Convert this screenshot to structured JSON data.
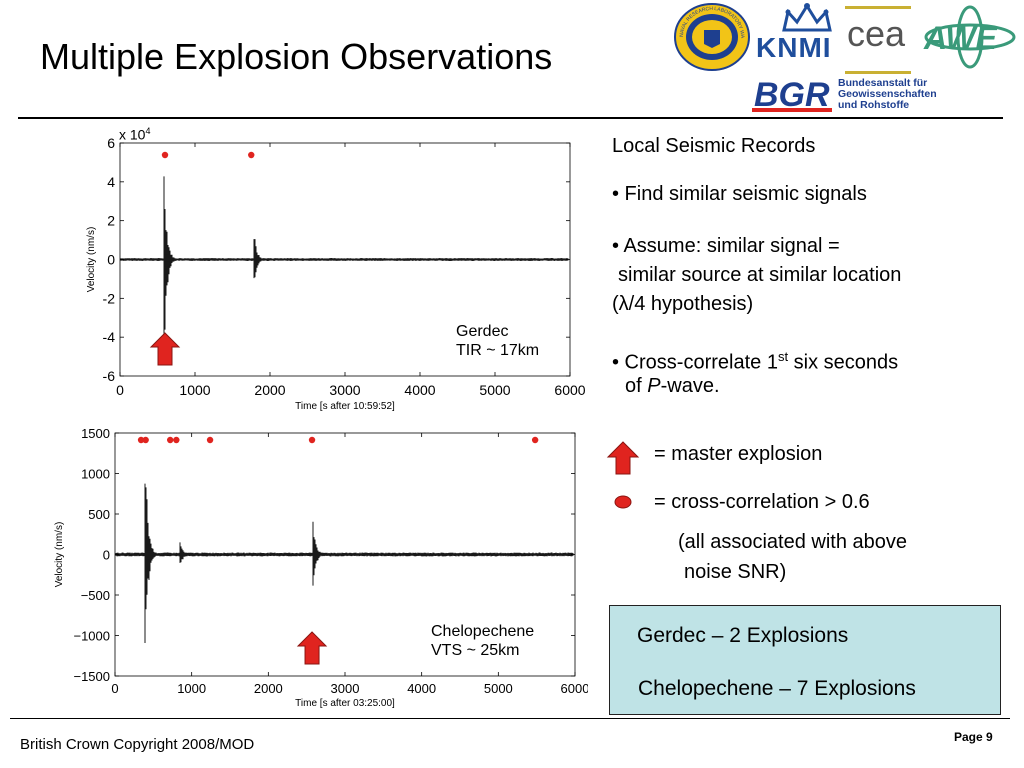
{
  "slide": {
    "title": "Multiple Explosion Observations",
    "copyright": "British Crown Copyright 2008/MOD",
    "page_label": "Page 9"
  },
  "logos": {
    "nrl_text": "NAVAL RESEARCH LABORATORY WASHINGTON DC",
    "knmi": "KNMI",
    "cea": "cea",
    "awe": "AWE",
    "bgr": "BGR",
    "bgr_full": [
      "Bundesanstalt für",
      "Geowissenschaften",
      "und Rohstoffe"
    ]
  },
  "charts": {
    "gerdec": {
      "location_label": [
        "Gerdec",
        "TIR ~ 17km"
      ],
      "scale_label": "x 10",
      "scale_exp": "4"
    },
    "chelopechene": {
      "location_label": [
        "Chelopechene",
        "VTS ~ 25km"
      ]
    }
  },
  "chart_data": [
    {
      "type": "line",
      "xlabel": "Time [s after 10:59:52]",
      "ylabel": "Velocity (nm/s)",
      "xlim": [
        0,
        6000
      ],
      "ylim": [
        -6,
        6
      ],
      "y_scale_factor": 10000,
      "xticks": [
        "0",
        "1000",
        "2000",
        "3000",
        "4000",
        "5000",
        "6000"
      ],
      "yticks": [
        "-6",
        "-4",
        "-2",
        "0",
        "2",
        "4",
        "6"
      ],
      "events_x": [
        590,
        1790
      ],
      "correlation_markers_x": [
        600,
        1750
      ],
      "master_explosion_x": 600
    },
    {
      "type": "line",
      "xlabel": "Time [s after 03:25:00]",
      "ylabel": "Velocity (nm/s)",
      "xlim": [
        0,
        6000
      ],
      "ylim": [
        -1500,
        1500
      ],
      "xticks": [
        "0",
        "1000",
        "2000",
        "3000",
        "4000",
        "5000",
        "6000"
      ],
      "yticks": [
        "−1500",
        "−1000",
        "−500",
        "0",
        "500",
        "1000",
        "1500"
      ],
      "events_x": [
        400,
        850,
        2580
      ],
      "correlation_markers_x": [
        340,
        400,
        720,
        800,
        1240,
        2570,
        5480
      ],
      "master_explosion_x": 2570
    }
  ],
  "right_panel": {
    "heading": "Local Seismic Records",
    "bullet1": "• Find similar seismic signals",
    "bullet2_l1": "• Assume: similar signal =",
    "bullet2_l2": "similar source at similar location",
    "bullet2_l3": "(λ/4 hypothesis)",
    "bullet3_pre": "• Cross-correlate 1",
    "bullet3_sup": "st",
    "bullet3_post": " six seconds",
    "bullet3_l2_pre": "of ",
    "bullet3_l2_italic": "P",
    "bullet3_l2_post": "-wave.",
    "legend_master": "= master explosion",
    "legend_xcorr": "= cross-correlation > 0.6",
    "legend_note_l1": "(all associated with above",
    "legend_note_l2": "noise SNR)"
  },
  "summary": {
    "line1": "Gerdec – 2 Explosions",
    "line2": "Chelopechene – 7 Explosions"
  },
  "colors": {
    "accent_red": "#e0241f",
    "summary_bg": "#bfe3e6",
    "awe_green": "#3a9a7a",
    "bgr_blue": "#1e3f8f",
    "knmi_blue": "#1f4e9c"
  }
}
